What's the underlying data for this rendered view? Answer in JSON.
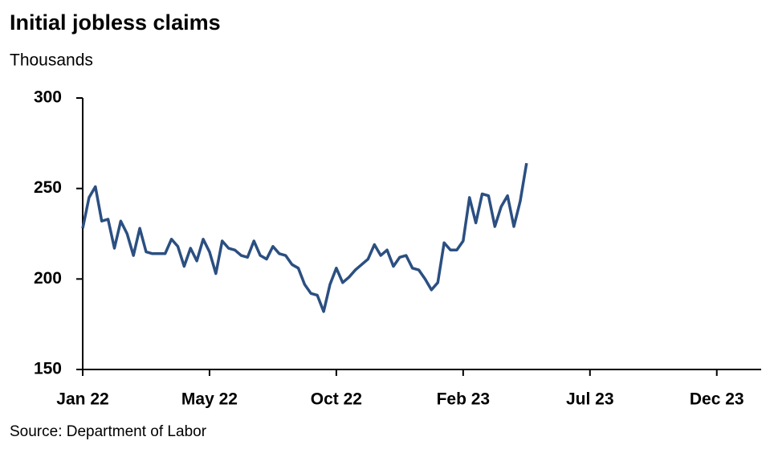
{
  "chart_data": {
    "type": "line",
    "title": "Initial jobless claims",
    "subtitle": "Thousands",
    "source": "Source: Department of Labor",
    "x": [
      0,
      1,
      2,
      3,
      4,
      5,
      6,
      7,
      8,
      9,
      10,
      11,
      12,
      13,
      14,
      15,
      16,
      17,
      18,
      19,
      20,
      21,
      22,
      23,
      24,
      25,
      26,
      27,
      28,
      29,
      30,
      31,
      32,
      33,
      34,
      35,
      36,
      37,
      38,
      39,
      40,
      41,
      42,
      43,
      44,
      45,
      46,
      47,
      48,
      49,
      50,
      51,
      52,
      53,
      54,
      55,
      56,
      57,
      58,
      59,
      60,
      61,
      62,
      63,
      64,
      65,
      66,
      67,
      68,
      69,
      70
    ],
    "series": [
      {
        "color": "#2b4f81",
        "values": [
          228,
          245,
          251,
          232,
          233,
          217,
          232,
          225,
          213,
          228,
          215,
          214,
          214,
          214,
          222,
          218,
          207,
          217,
          210,
          222,
          215,
          203,
          221,
          217,
          216,
          213,
          212,
          221,
          213,
          211,
          218,
          214,
          213,
          208,
          206,
          197,
          192,
          191,
          182,
          197,
          206,
          198,
          201,
          205,
          208,
          211,
          219,
          213,
          216,
          207,
          212,
          213,
          206,
          205,
          200,
          194,
          198,
          220,
          216,
          216,
          221,
          245,
          231,
          247,
          246,
          229,
          240,
          246,
          229,
          243,
          264
        ]
      }
    ],
    "xlim": [
      0,
      107
    ],
    "xticks": [
      {
        "value": 0,
        "label": "Jan 22"
      },
      {
        "value": 20,
        "label": "May 22"
      },
      {
        "value": 40,
        "label": "Oct 22"
      },
      {
        "value": 60,
        "label": "Feb 23"
      },
      {
        "value": 80,
        "label": "Jul 23"
      },
      {
        "value": 100,
        "label": "Dec 23"
      }
    ],
    "ylim": [
      150,
      300
    ],
    "yticks": [
      150,
      200,
      250,
      300
    ]
  }
}
